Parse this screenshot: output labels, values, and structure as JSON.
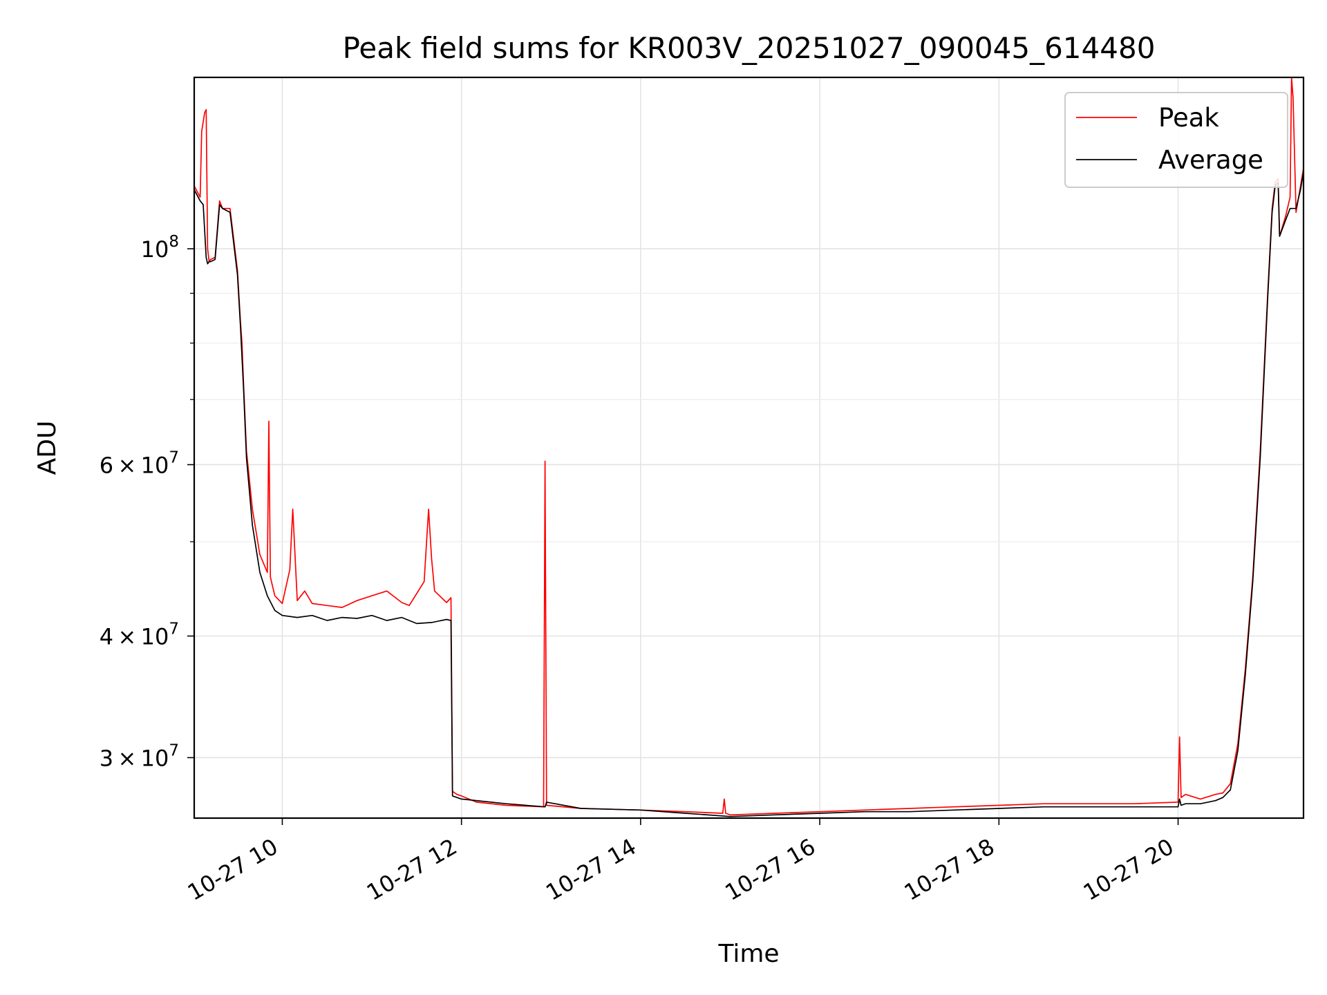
{
  "chart_data": {
    "type": "line",
    "title": "Peak field sums for KR003V_20251027_090045_614480",
    "xlabel": "Time",
    "ylabel": "ADU",
    "y_scale": "log",
    "ylim": [
      26000000,
      150000000
    ],
    "xlim": [
      "2025-10-27 09:01",
      "2025-10-27 21:24"
    ],
    "x_ticks": [
      {
        "value": "2025-10-27 10:00",
        "label": "10-27 10"
      },
      {
        "value": "2025-10-27 12:00",
        "label": "10-27 12"
      },
      {
        "value": "2025-10-27 14:00",
        "label": "10-27 14"
      },
      {
        "value": "2025-10-27 16:00",
        "label": "10-27 16"
      },
      {
        "value": "2025-10-27 18:00",
        "label": "10-27 18"
      },
      {
        "value": "2025-10-27 20:00",
        "label": "10-27 20"
      }
    ],
    "y_ticks": [
      {
        "value": 30000000,
        "base": "3",
        "exp": "7"
      },
      {
        "value": 40000000,
        "base": "4",
        "exp": "7"
      },
      {
        "value": 60000000,
        "base": "6",
        "exp": "7"
      },
      {
        "value": 100000000,
        "base": "",
        "exp": "8"
      }
    ],
    "y_minor_ticks": [
      50000000,
      70000000,
      80000000,
      90000000
    ],
    "times_symbol": "×",
    "power_base": "10",
    "grid": true,
    "legend": {
      "position": "top-right",
      "entries": [
        {
          "label": "Peak",
          "color": "#ff0000"
        },
        {
          "label": "Average",
          "color": "#000000"
        }
      ]
    },
    "series": [
      {
        "name": "Peak",
        "color": "#ff0000",
        "x": [
          "2025-10-27 09:01",
          "2025-10-27 09:05",
          "2025-10-27 09:06",
          "2025-10-27 09:08",
          "2025-10-27 09:09",
          "2025-10-27 09:10",
          "2025-10-27 09:11",
          "2025-10-27 09:12",
          "2025-10-27 09:15",
          "2025-10-27 09:18",
          "2025-10-27 09:20",
          "2025-10-27 09:25",
          "2025-10-27 09:30",
          "2025-10-27 09:32",
          "2025-10-27 09:33",
          "2025-10-27 09:34",
          "2025-10-27 09:36",
          "2025-10-27 09:40",
          "2025-10-27 09:45",
          "2025-10-27 09:50",
          "2025-10-27 09:51",
          "2025-10-27 09:52",
          "2025-10-27 09:55",
          "2025-10-27 10:00",
          "2025-10-27 10:05",
          "2025-10-27 10:07",
          "2025-10-27 10:10",
          "2025-10-27 10:15",
          "2025-10-27 10:20",
          "2025-10-27 10:30",
          "2025-10-27 10:40",
          "2025-10-27 10:50",
          "2025-10-27 11:00",
          "2025-10-27 11:10",
          "2025-10-27 11:20",
          "2025-10-27 11:25",
          "2025-10-27 11:35",
          "2025-10-27 11:38",
          "2025-10-27 11:40",
          "2025-10-27 11:42",
          "2025-10-27 11:50",
          "2025-10-27 11:53",
          "2025-10-27 11:54",
          "2025-10-27 11:57",
          "2025-10-27 12:00",
          "2025-10-27 12:10",
          "2025-10-27 12:30",
          "2025-10-27 12:55",
          "2025-10-27 12:56",
          "2025-10-27 12:57",
          "2025-10-27 13:20",
          "2025-10-27 14:00",
          "2025-10-27 14:30",
          "2025-10-27 14:55",
          "2025-10-27 14:56",
          "2025-10-27 14:57",
          "2025-10-27 15:00",
          "2025-10-27 15:30",
          "2025-10-27 16:00",
          "2025-10-27 16:30",
          "2025-10-27 17:00",
          "2025-10-27 17:30",
          "2025-10-27 18:00",
          "2025-10-27 18:30",
          "2025-10-27 19:00",
          "2025-10-27 19:30",
          "2025-10-27 20:00",
          "2025-10-27 20:01",
          "2025-10-27 20:02",
          "2025-10-27 20:05",
          "2025-10-27 20:15",
          "2025-10-27 20:25",
          "2025-10-27 20:30",
          "2025-10-27 20:35",
          "2025-10-27 20:40",
          "2025-10-27 20:45",
          "2025-10-27 20:50",
          "2025-10-27 20:55",
          "2025-10-27 21:00",
          "2025-10-27 21:03",
          "2025-10-27 21:05",
          "2025-10-27 21:07",
          "2025-10-27 21:08",
          "2025-10-27 21:12",
          "2025-10-27 21:15",
          "2025-10-27 21:16",
          "2025-10-27 21:17",
          "2025-10-27 21:19",
          "2025-10-27 21:22",
          "2025-10-27 21:24"
        ],
        "y": [
          116000000,
          113000000,
          132000000,
          138000000,
          139000000,
          100000000,
          97000000,
          97500000,
          98000000,
          112000000,
          110000000,
          110000000,
          95000000,
          84000000,
          80000000,
          73000000,
          62000000,
          54000000,
          48500000,
          46500000,
          66500000,
          46000000,
          44000000,
          43200000,
          46800000,
          54000000,
          43500000,
          44500000,
          43200000,
          43000000,
          42800000,
          43500000,
          44000000,
          44500000,
          43300000,
          43000000,
          45500000,
          54000000,
          48000000,
          44500000,
          43300000,
          43800000,
          27700000,
          27500000,
          27400000,
          27000000,
          26800000,
          26700000,
          60500000,
          26800000,
          26600000,
          26500000,
          26400000,
          26300000,
          27200000,
          26300000,
          26200000,
          26300000,
          26400000,
          26500000,
          26600000,
          26700000,
          26800000,
          26900000,
          26900000,
          26900000,
          27000000,
          31500000,
          27300000,
          27500000,
          27200000,
          27500000,
          27600000,
          28200000,
          31000000,
          37000000,
          46000000,
          62000000,
          90000000,
          110000000,
          117000000,
          118000000,
          103000000,
          108000000,
          113000000,
          150000000,
          143000000,
          109000000,
          116000000,
          121000000
        ]
      },
      {
        "name": "Average",
        "color": "#000000",
        "x": [
          "2025-10-27 09:01",
          "2025-10-27 09:05",
          "2025-10-27 09:07",
          "2025-10-27 09:09",
          "2025-10-27 09:10",
          "2025-10-27 09:11",
          "2025-10-27 09:12",
          "2025-10-27 09:15",
          "2025-10-27 09:18",
          "2025-10-27 09:20",
          "2025-10-27 09:25",
          "2025-10-27 09:30",
          "2025-10-27 09:32",
          "2025-10-27 09:34",
          "2025-10-27 09:36",
          "2025-10-27 09:40",
          "2025-10-27 09:45",
          "2025-10-27 09:50",
          "2025-10-27 09:55",
          "2025-10-27 10:00",
          "2025-10-27 10:10",
          "2025-10-27 10:20",
          "2025-10-27 10:30",
          "2025-10-27 10:40",
          "2025-10-27 10:50",
          "2025-10-27 11:00",
          "2025-10-27 11:10",
          "2025-10-27 11:20",
          "2025-10-27 11:30",
          "2025-10-27 11:40",
          "2025-10-27 11:50",
          "2025-10-27 11:53",
          "2025-10-27 11:54",
          "2025-10-27 11:57",
          "2025-10-27 12:00",
          "2025-10-27 12:30",
          "2025-10-27 12:56",
          "2025-10-27 12:57",
          "2025-10-27 13:20",
          "2025-10-27 14:00",
          "2025-10-27 14:30",
          "2025-10-27 15:00",
          "2025-10-27 15:30",
          "2025-10-27 16:00",
          "2025-10-27 16:30",
          "2025-10-27 17:00",
          "2025-10-27 17:30",
          "2025-10-27 18:00",
          "2025-10-27 18:30",
          "2025-10-27 19:00",
          "2025-10-27 19:30",
          "2025-10-27 20:00",
          "2025-10-27 20:01",
          "2025-10-27 20:02",
          "2025-10-27 20:05",
          "2025-10-27 20:15",
          "2025-10-27 20:25",
          "2025-10-27 20:30",
          "2025-10-27 20:35",
          "2025-10-27 20:40",
          "2025-10-27 20:45",
          "2025-10-27 20:50",
          "2025-10-27 20:55",
          "2025-10-27 21:00",
          "2025-10-27 21:03",
          "2025-10-27 21:05",
          "2025-10-27 21:07",
          "2025-10-27 21:08",
          "2025-10-27 21:12",
          "2025-10-27 21:15",
          "2025-10-27 21:19",
          "2025-10-27 21:22",
          "2025-10-27 21:24"
        ],
        "y": [
          115000000,
          112000000,
          111000000,
          98000000,
          96500000,
          97000000,
          97000000,
          97500000,
          111000000,
          110000000,
          109000000,
          94000000,
          83000000,
          72000000,
          61000000,
          52000000,
          46500000,
          44000000,
          42500000,
          42000000,
          41800000,
          42000000,
          41500000,
          41800000,
          41700000,
          42000000,
          41500000,
          41800000,
          41200000,
          41300000,
          41600000,
          41500000,
          27400000,
          27300000,
          27200000,
          26900000,
          26700000,
          27000000,
          26600000,
          26500000,
          26300000,
          26100000,
          26200000,
          26300000,
          26400000,
          26400000,
          26500000,
          26600000,
          26700000,
          26700000,
          26700000,
          26700000,
          27200000,
          26800000,
          26900000,
          26900000,
          27100000,
          27300000,
          27800000,
          30500000,
          36500000,
          45500000,
          61000000,
          89000000,
          109000000,
          116000000,
          117000000,
          103000000,
          107000000,
          110000000,
          110000000,
          115000000,
          120000000
        ]
      }
    ]
  }
}
